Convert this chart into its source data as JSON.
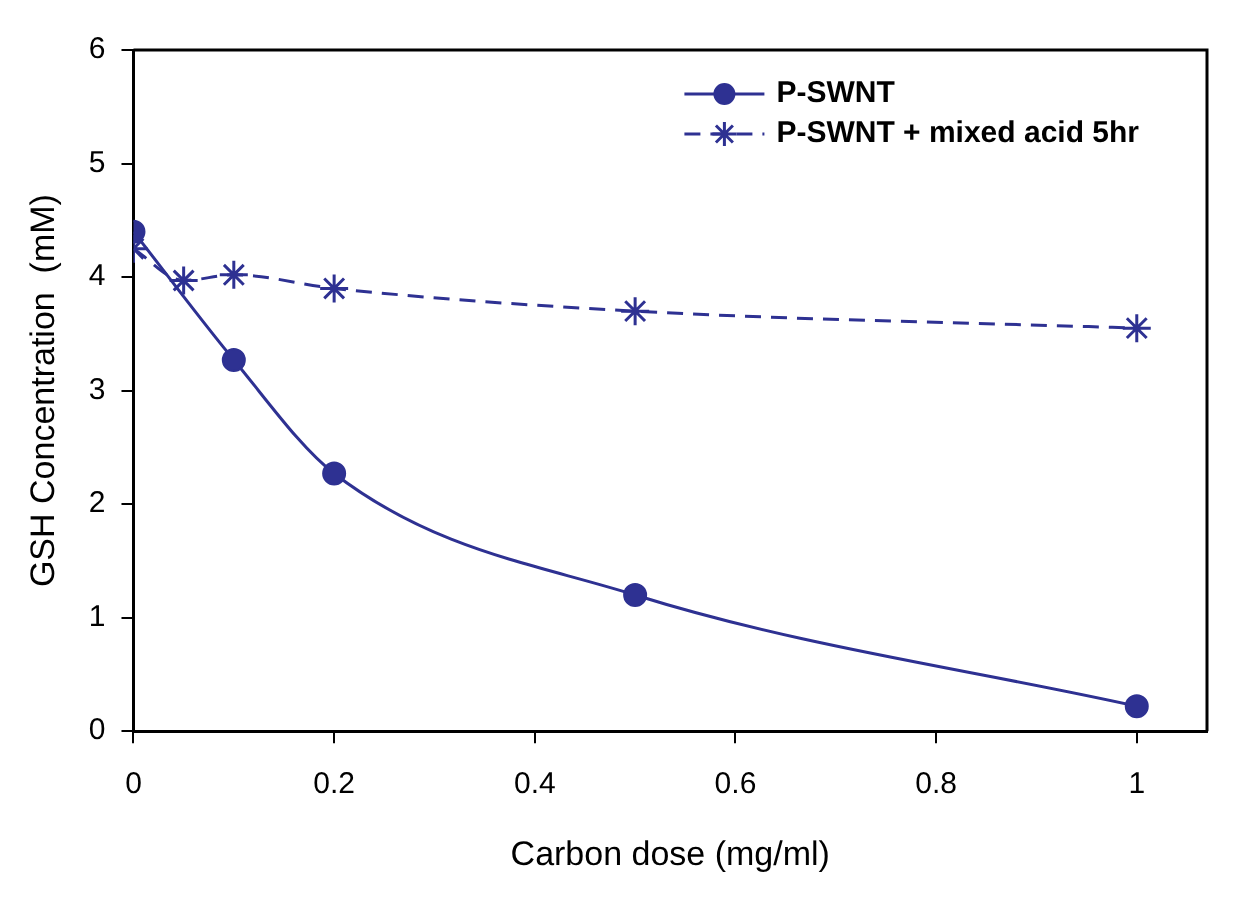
{
  "chart_data": {
    "type": "line",
    "xlabel": "Carbon dose (mg/ml)",
    "ylabel": "GSH Concentration  (mM)",
    "xlim": [
      0,
      1.07
    ],
    "xticks": [
      0,
      0.2,
      0.4,
      0.6,
      0.8,
      1
    ],
    "ylim": [
      0,
      6
    ],
    "yticks": [
      0,
      1,
      2,
      3,
      4,
      5,
      6
    ],
    "grid": false,
    "legend": "top right",
    "series": [
      {
        "name": "P-SWNT",
        "color": "#2e3192",
        "x": [
          0,
          0.05,
          0.1,
          0.2,
          0.5,
          1
        ],
        "values": [
          4.4,
          null,
          3.27,
          2.27,
          1.2,
          0.22
        ],
        "marker": "circle",
        "line_style": "solid"
      },
      {
        "name": "P-SWNT + mixed acid 5hr",
        "color": "#2e3192",
        "x": [
          0,
          0.05,
          0.1,
          0.2,
          0.5,
          1
        ],
        "values": [
          4.25,
          3.97,
          4.02,
          3.9,
          3.7,
          3.55
        ],
        "marker": "cross",
        "line_style": "dashed"
      }
    ]
  }
}
